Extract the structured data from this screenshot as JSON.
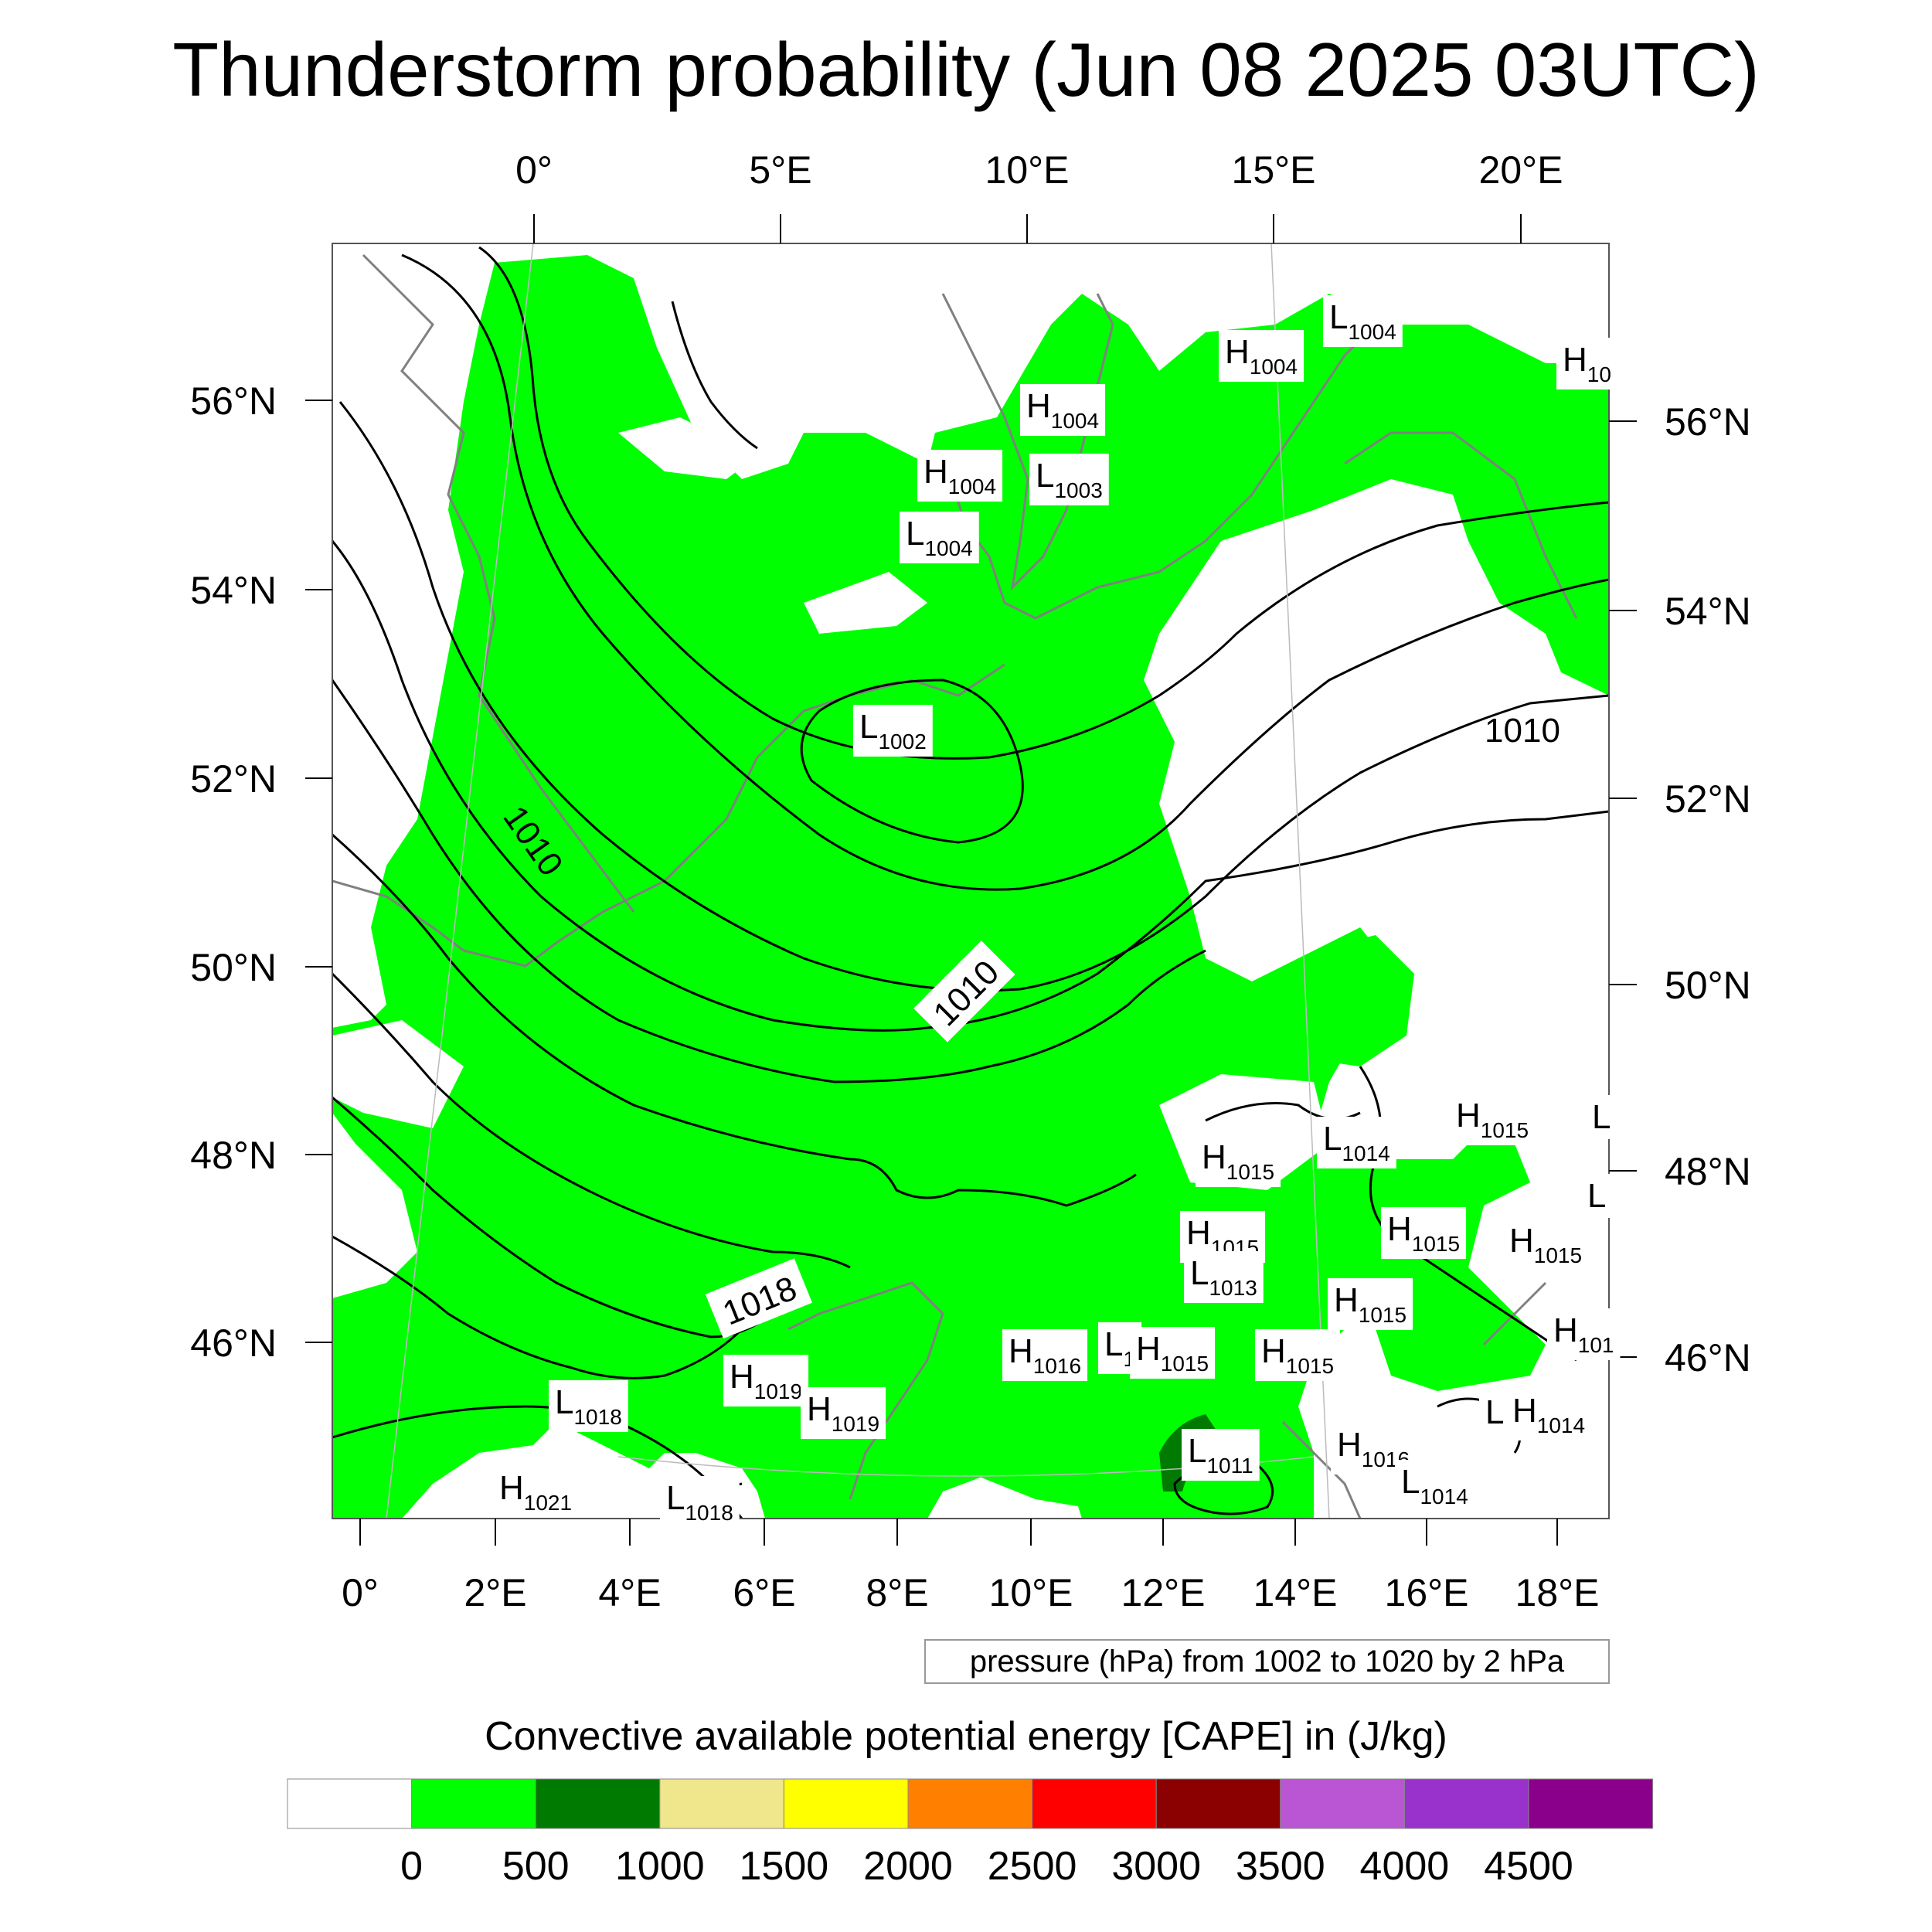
{
  "title": "Thunderstorm probability (Jun 08 2025 03UTC)",
  "top_lon_labels": [
    "0°",
    "5°E",
    "10°E",
    "15°E",
    "20°E"
  ],
  "bottom_lon_labels": [
    "0°",
    "2°E",
    "4°E",
    "6°E",
    "8°E",
    "10°E",
    "12°E",
    "14°E",
    "16°E",
    "18°E"
  ],
  "left_lat_labels": [
    "56°N",
    "54°N",
    "52°N",
    "50°N",
    "48°N",
    "46°N"
  ],
  "right_lat_labels": [
    "56°N",
    "54°N",
    "52°N",
    "50°N",
    "48°N",
    "46°N"
  ],
  "pressure_note": "pressure (hPa) from 1002 to 1020 by 2 hPa",
  "isobar_labels": [
    "1010",
    "1010",
    "1010",
    "1018"
  ],
  "pressure_centers": [
    {
      "type": "L",
      "value": "1004"
    },
    {
      "type": "H",
      "value": "1004"
    },
    {
      "type": "H",
      "value": "10"
    },
    {
      "type": "H",
      "value": "1004"
    },
    {
      "type": "H",
      "value": "1004"
    },
    {
      "type": "L",
      "value": "1003"
    },
    {
      "type": "L",
      "value": "1004"
    },
    {
      "type": "L",
      "value": "1002"
    },
    {
      "type": "H",
      "value": "1015"
    },
    {
      "type": "L",
      "value": "1014"
    },
    {
      "type": "H",
      "value": "1015"
    },
    {
      "type": "H",
      "value": "1015"
    },
    {
      "type": "H",
      "value": "1015"
    },
    {
      "type": "H",
      "value": "1015"
    },
    {
      "type": "L",
      "value": "1013"
    },
    {
      "type": "H",
      "value": "1015"
    },
    {
      "type": "H",
      "value": "1016"
    },
    {
      "type": "L",
      "value": "1"
    },
    {
      "type": "H",
      "value": "1015"
    },
    {
      "type": "H",
      "value": "1015"
    },
    {
      "type": "H",
      "value": "101"
    },
    {
      "type": "H",
      "value": "1019"
    },
    {
      "type": "H",
      "value": "1019"
    },
    {
      "type": "L",
      "value": "1018"
    },
    {
      "type": "H",
      "value": "1021"
    },
    {
      "type": "L",
      "value": "1018"
    },
    {
      "type": "L",
      "value": "1011"
    },
    {
      "type": "H",
      "value": "1016"
    },
    {
      "type": "L",
      "value": "1014"
    },
    {
      "type": "H",
      "value": "1014"
    },
    {
      "type": "L",
      "value": ""
    },
    {
      "type": "L",
      "value": ""
    },
    {
      "type": "L",
      "value": ""
    }
  ],
  "colorbar": {
    "title": "Convective available potential energy [CAPE] in (J/kg)",
    "colors": [
      "#ffffff",
      "#00ff00",
      "#007a00",
      "#f0e68c",
      "#ffff00",
      "#ff8000",
      "#ff0000",
      "#8b0000",
      "#ba55d3",
      "#9932cc",
      "#8b008b"
    ],
    "tick_labels": [
      "0",
      "500",
      "1000",
      "1500",
      "2000",
      "2500",
      "3000",
      "3500",
      "4000",
      "4500"
    ]
  },
  "colors": {
    "cape_low": "#00ff00",
    "cape_mid": "#007a00",
    "cape_high": "#f0e68c",
    "coastline": "#808080",
    "isobar": "#000000"
  }
}
